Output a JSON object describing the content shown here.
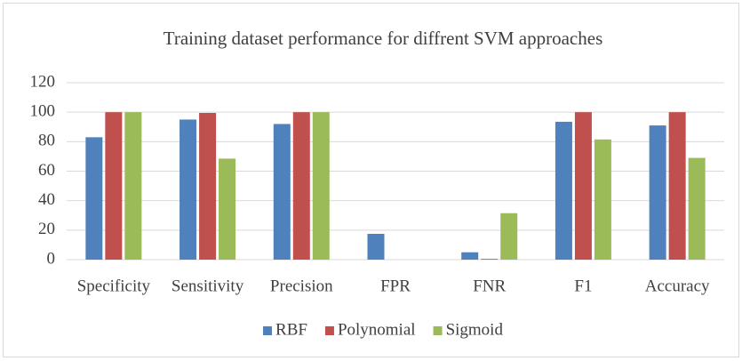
{
  "chart_data": {
    "type": "bar",
    "title": "Training dataset performance for diffrent SVM approaches",
    "categories": [
      "Specificity",
      "Sensitivity",
      "Precision",
      "FPR",
      "FNR",
      "F1",
      "Accuracy"
    ],
    "series": [
      {
        "name": "RBF",
        "color": "#4f81bd",
        "values": [
          83,
          95,
          92,
          17.5,
          5,
          93.5,
          91
        ]
      },
      {
        "name": "Polynomial",
        "color": "#c0504d",
        "values": [
          100,
          99.5,
          100,
          0,
          0.5,
          100,
          100
        ]
      },
      {
        "name": "Sigmoid",
        "color": "#9bbb59",
        "values": [
          100,
          68.5,
          100,
          0,
          31.5,
          81.5,
          69
        ]
      }
    ],
    "ylim": [
      0,
      120
    ],
    "yticks": [
      0,
      20,
      40,
      60,
      80,
      100,
      120
    ],
    "grid": true,
    "legend": "bottom"
  }
}
